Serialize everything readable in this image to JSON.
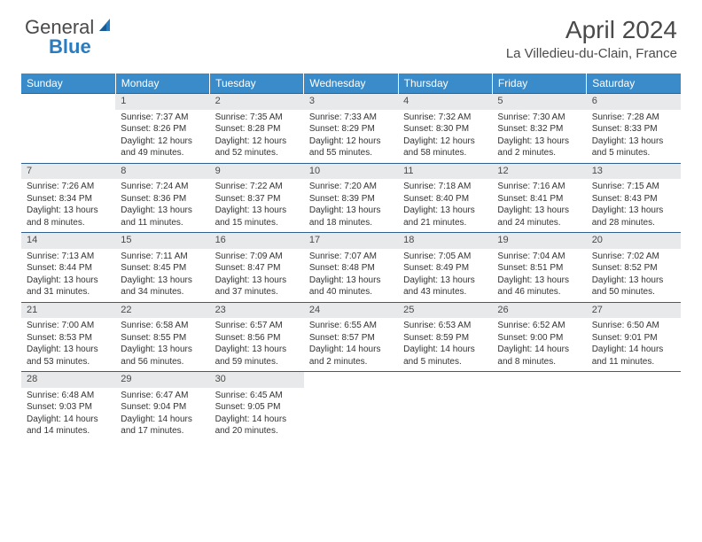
{
  "brand": {
    "part1": "General",
    "part2": "Blue"
  },
  "title": "April 2024",
  "location": "La Villedieu-du-Clain, France",
  "colors": {
    "header_bg": "#3a8bc9",
    "daynum_bg": "#e8e9ea",
    "rule": "#2f5f8f",
    "text": "#333333"
  },
  "weekdays": [
    "Sunday",
    "Monday",
    "Tuesday",
    "Wednesday",
    "Thursday",
    "Friday",
    "Saturday"
  ],
  "weeks": [
    [
      {
        "n": "",
        "sr": "",
        "ss": "",
        "dl": ""
      },
      {
        "n": "1",
        "sr": "Sunrise: 7:37 AM",
        "ss": "Sunset: 8:26 PM",
        "dl": "Daylight: 12 hours and 49 minutes."
      },
      {
        "n": "2",
        "sr": "Sunrise: 7:35 AM",
        "ss": "Sunset: 8:28 PM",
        "dl": "Daylight: 12 hours and 52 minutes."
      },
      {
        "n": "3",
        "sr": "Sunrise: 7:33 AM",
        "ss": "Sunset: 8:29 PM",
        "dl": "Daylight: 12 hours and 55 minutes."
      },
      {
        "n": "4",
        "sr": "Sunrise: 7:32 AM",
        "ss": "Sunset: 8:30 PM",
        "dl": "Daylight: 12 hours and 58 minutes."
      },
      {
        "n": "5",
        "sr": "Sunrise: 7:30 AM",
        "ss": "Sunset: 8:32 PM",
        "dl": "Daylight: 13 hours and 2 minutes."
      },
      {
        "n": "6",
        "sr": "Sunrise: 7:28 AM",
        "ss": "Sunset: 8:33 PM",
        "dl": "Daylight: 13 hours and 5 minutes."
      }
    ],
    [
      {
        "n": "7",
        "sr": "Sunrise: 7:26 AM",
        "ss": "Sunset: 8:34 PM",
        "dl": "Daylight: 13 hours and 8 minutes."
      },
      {
        "n": "8",
        "sr": "Sunrise: 7:24 AM",
        "ss": "Sunset: 8:36 PM",
        "dl": "Daylight: 13 hours and 11 minutes."
      },
      {
        "n": "9",
        "sr": "Sunrise: 7:22 AM",
        "ss": "Sunset: 8:37 PM",
        "dl": "Daylight: 13 hours and 15 minutes."
      },
      {
        "n": "10",
        "sr": "Sunrise: 7:20 AM",
        "ss": "Sunset: 8:39 PM",
        "dl": "Daylight: 13 hours and 18 minutes."
      },
      {
        "n": "11",
        "sr": "Sunrise: 7:18 AM",
        "ss": "Sunset: 8:40 PM",
        "dl": "Daylight: 13 hours and 21 minutes."
      },
      {
        "n": "12",
        "sr": "Sunrise: 7:16 AM",
        "ss": "Sunset: 8:41 PM",
        "dl": "Daylight: 13 hours and 24 minutes."
      },
      {
        "n": "13",
        "sr": "Sunrise: 7:15 AM",
        "ss": "Sunset: 8:43 PM",
        "dl": "Daylight: 13 hours and 28 minutes."
      }
    ],
    [
      {
        "n": "14",
        "sr": "Sunrise: 7:13 AM",
        "ss": "Sunset: 8:44 PM",
        "dl": "Daylight: 13 hours and 31 minutes."
      },
      {
        "n": "15",
        "sr": "Sunrise: 7:11 AM",
        "ss": "Sunset: 8:45 PM",
        "dl": "Daylight: 13 hours and 34 minutes."
      },
      {
        "n": "16",
        "sr": "Sunrise: 7:09 AM",
        "ss": "Sunset: 8:47 PM",
        "dl": "Daylight: 13 hours and 37 minutes."
      },
      {
        "n": "17",
        "sr": "Sunrise: 7:07 AM",
        "ss": "Sunset: 8:48 PM",
        "dl": "Daylight: 13 hours and 40 minutes."
      },
      {
        "n": "18",
        "sr": "Sunrise: 7:05 AM",
        "ss": "Sunset: 8:49 PM",
        "dl": "Daylight: 13 hours and 43 minutes."
      },
      {
        "n": "19",
        "sr": "Sunrise: 7:04 AM",
        "ss": "Sunset: 8:51 PM",
        "dl": "Daylight: 13 hours and 46 minutes."
      },
      {
        "n": "20",
        "sr": "Sunrise: 7:02 AM",
        "ss": "Sunset: 8:52 PM",
        "dl": "Daylight: 13 hours and 50 minutes."
      }
    ],
    [
      {
        "n": "21",
        "sr": "Sunrise: 7:00 AM",
        "ss": "Sunset: 8:53 PM",
        "dl": "Daylight: 13 hours and 53 minutes."
      },
      {
        "n": "22",
        "sr": "Sunrise: 6:58 AM",
        "ss": "Sunset: 8:55 PM",
        "dl": "Daylight: 13 hours and 56 minutes."
      },
      {
        "n": "23",
        "sr": "Sunrise: 6:57 AM",
        "ss": "Sunset: 8:56 PM",
        "dl": "Daylight: 13 hours and 59 minutes."
      },
      {
        "n": "24",
        "sr": "Sunrise: 6:55 AM",
        "ss": "Sunset: 8:57 PM",
        "dl": "Daylight: 14 hours and 2 minutes."
      },
      {
        "n": "25",
        "sr": "Sunrise: 6:53 AM",
        "ss": "Sunset: 8:59 PM",
        "dl": "Daylight: 14 hours and 5 minutes."
      },
      {
        "n": "26",
        "sr": "Sunrise: 6:52 AM",
        "ss": "Sunset: 9:00 PM",
        "dl": "Daylight: 14 hours and 8 minutes."
      },
      {
        "n": "27",
        "sr": "Sunrise: 6:50 AM",
        "ss": "Sunset: 9:01 PM",
        "dl": "Daylight: 14 hours and 11 minutes."
      }
    ],
    [
      {
        "n": "28",
        "sr": "Sunrise: 6:48 AM",
        "ss": "Sunset: 9:03 PM",
        "dl": "Daylight: 14 hours and 14 minutes."
      },
      {
        "n": "29",
        "sr": "Sunrise: 6:47 AM",
        "ss": "Sunset: 9:04 PM",
        "dl": "Daylight: 14 hours and 17 minutes."
      },
      {
        "n": "30",
        "sr": "Sunrise: 6:45 AM",
        "ss": "Sunset: 9:05 PM",
        "dl": "Daylight: 14 hours and 20 minutes."
      },
      {
        "n": "",
        "sr": "",
        "ss": "",
        "dl": ""
      },
      {
        "n": "",
        "sr": "",
        "ss": "",
        "dl": ""
      },
      {
        "n": "",
        "sr": "",
        "ss": "",
        "dl": ""
      },
      {
        "n": "",
        "sr": "",
        "ss": "",
        "dl": ""
      }
    ]
  ]
}
